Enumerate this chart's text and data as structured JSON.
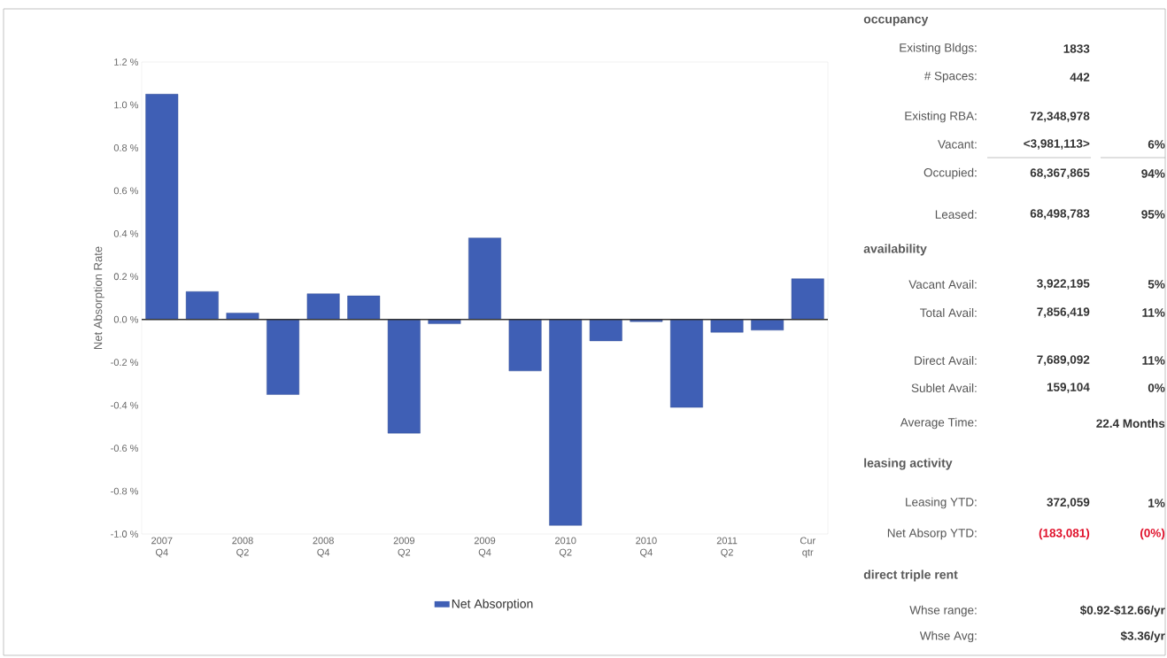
{
  "chart_data": [
    {
      "type": "bar",
      "ylabel": "Net Absorption Rate",
      "categories": [
        "2007 Q4",
        null,
        "2008 Q2",
        null,
        "2008 Q4",
        null,
        "2009 Q2",
        null,
        "2009 Q4",
        null,
        "2010 Q2",
        null,
        "2010 Q4",
        null,
        "2011 Q2",
        null,
        "Cur qtr"
      ],
      "series": [
        {
          "name": "Net Absorption",
          "color": "#3f5fb5",
          "values": [
            1.05,
            0.13,
            0.03,
            -0.35,
            0.12,
            0.11,
            -0.53,
            -0.02,
            0.38,
            -0.24,
            -0.96,
            -0.1,
            -0.01,
            -0.41,
            -0.06,
            -0.05,
            0.19
          ]
        }
      ],
      "ylim": [
        -1.0,
        1.2
      ],
      "yticks": [
        {
          "value": -1.0,
          "label": "-1.0 %"
        },
        {
          "value": -0.8,
          "label": "-0.8 %"
        },
        {
          "value": -0.6,
          "label": "-0.6 %"
        },
        {
          "value": -0.4,
          "label": "-0.4 %"
        },
        {
          "value": -0.2,
          "label": "-0.2 %"
        },
        {
          "value": 0.0,
          "label": "0.0 %"
        },
        {
          "value": 0.2,
          "label": "0.2 %"
        },
        {
          "value": 0.4,
          "label": "0.4 %"
        },
        {
          "value": 0.6,
          "label": "0.6 %"
        },
        {
          "value": 0.8,
          "label": "0.8 %"
        },
        {
          "value": 1.0,
          "label": "1.0 %"
        },
        {
          "value": 1.2,
          "label": "1.2 %"
        }
      ],
      "legend": "bottom"
    },
    {
      "type": "other",
      "annotations": [
        "occupancy",
        "Existing Bldgs:",
        "1833",
        "# Spaces:",
        "442",
        "Existing RBA:",
        "72,348,978",
        "Vacant:",
        "<3,981,113>",
        "6%",
        "Occupied:",
        "68,367,865",
        "94%",
        "Leased:",
        "68,498,783",
        "95%",
        "availability",
        "Vacant Avail:",
        "3,922,195",
        "5%",
        "Total Avail:",
        "7,856,419",
        "11%",
        "Direct Avail:",
        "7,689,092",
        "11%",
        "Sublet Avail:",
        "159,104",
        "0%",
        "Average Time:",
        "22.4 Months",
        "leasing activity",
        "Leasing YTD:",
        "372,059",
        "1%",
        "Net Absorp YTD:",
        "(183,081)",
        "(0%)",
        "direct triple rent",
        "Whse range:",
        "$0.92-$12.66/yr",
        "Whse Avg:",
        "$3.36/yr"
      ]
    }
  ]
}
